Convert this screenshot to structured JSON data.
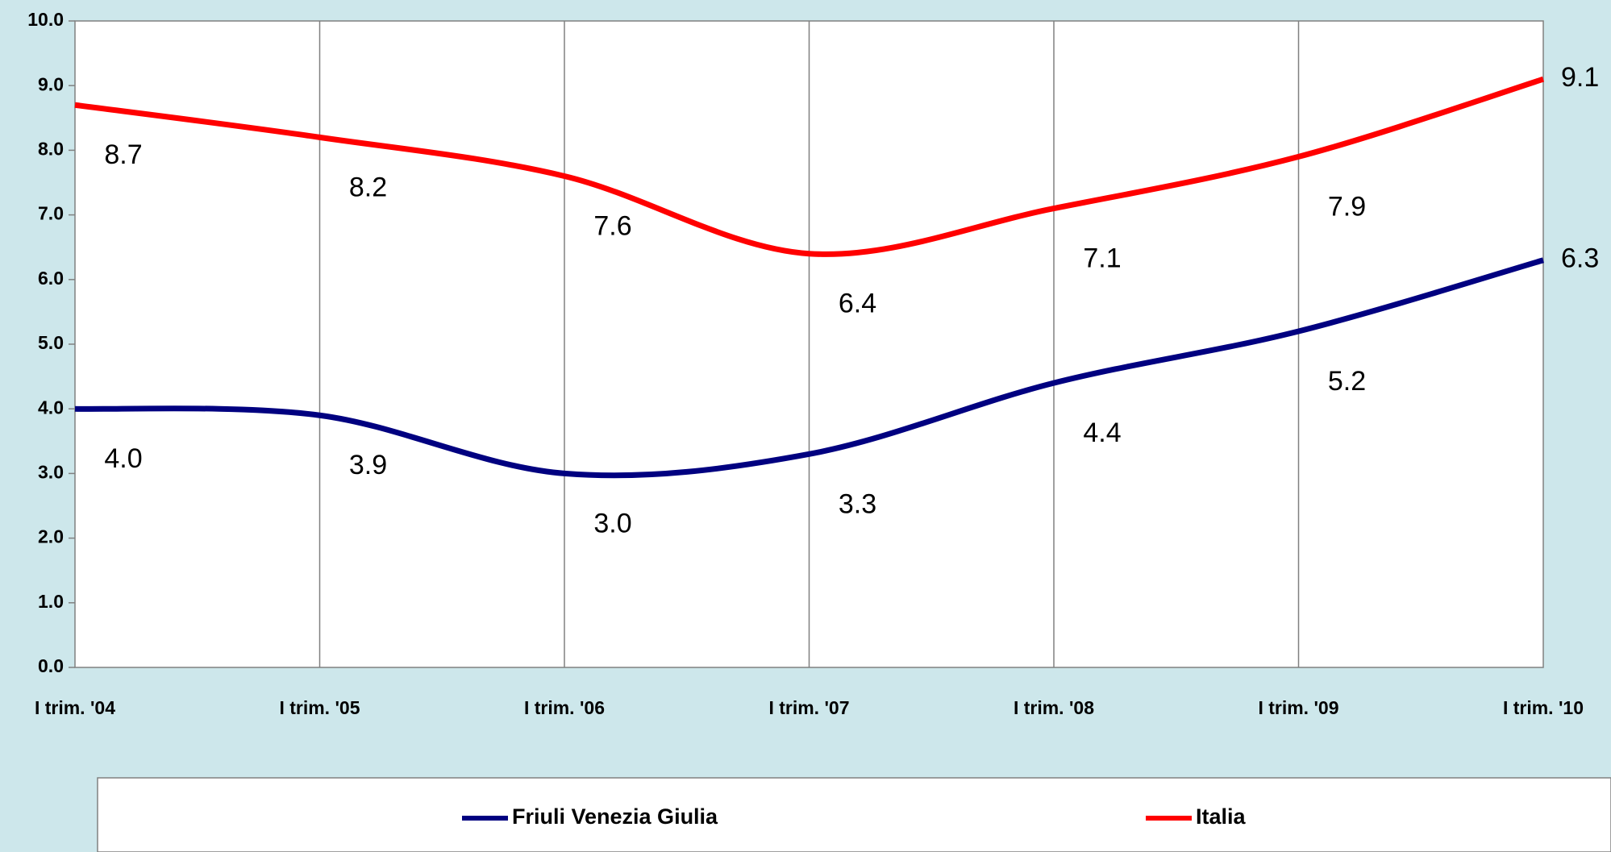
{
  "chart_data": {
    "type": "line",
    "categories": [
      "I trim. '04",
      "I trim. '05",
      "I trim. '06",
      "I trim. '07",
      "I trim. '08",
      "I trim. '09",
      "I trim. '10"
    ],
    "series": [
      {
        "name": "Friuli Venezia Giulia",
        "color": "#000080",
        "values": [
          4,
          3.9,
          3,
          3.3,
          4.4,
          5.2,
          6.3
        ],
        "value_labels": [
          "4.0",
          "3.9",
          "3.0",
          "3.3",
          "4.4",
          "5.2",
          "6.3"
        ]
      },
      {
        "name": "Italia",
        "color": "#ff0000",
        "values": [
          8.7,
          8.2,
          7.6,
          6.4,
          7.1,
          7.9,
          9.1
        ],
        "value_labels": [
          "8.7",
          "8.2",
          "7.6",
          "6.4",
          "7.1",
          "7.9",
          "9.1"
        ]
      }
    ],
    "ylim": [
      0,
      10
    ],
    "yticks": [
      {
        "value": 0,
        "label": "0.0"
      },
      {
        "value": 1,
        "label": "1.0"
      },
      {
        "value": 2,
        "label": "2.0"
      },
      {
        "value": 3,
        "label": "3.0"
      },
      {
        "value": 4,
        "label": "4.0"
      },
      {
        "value": 5,
        "label": "5.0"
      },
      {
        "value": 6,
        "label": "6.0"
      },
      {
        "value": 7,
        "label": "7.0"
      },
      {
        "value": 8,
        "label": "8.0"
      },
      {
        "value": 9,
        "label": "9.0"
      },
      {
        "value": 10,
        "label": "10.0"
      }
    ],
    "grid": "x",
    "legend": "bottom"
  }
}
